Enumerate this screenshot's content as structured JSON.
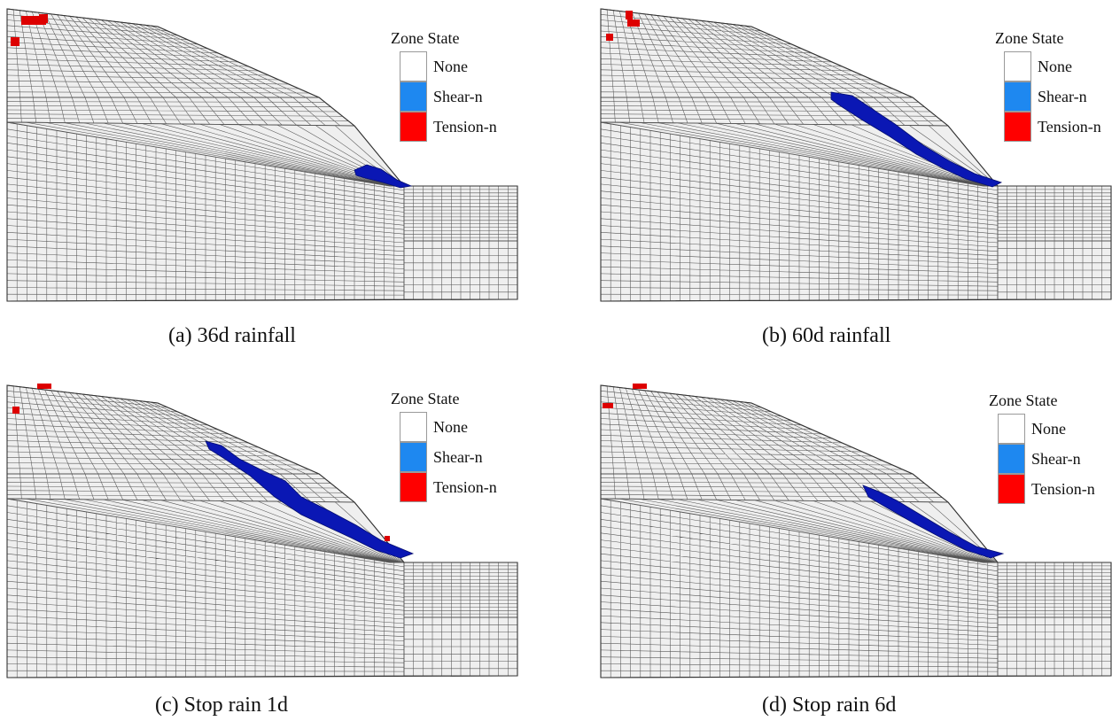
{
  "legend": {
    "title": "Zone State",
    "items": [
      {
        "label": "None",
        "color": "#ffffff"
      },
      {
        "label": "Shear-n",
        "color": "#1e88f0"
      },
      {
        "label": "Tension-n",
        "color": "#ff0000"
      }
    ]
  },
  "mesh_colors": {
    "zone_fill": "#efefef",
    "grid_line": "#555555",
    "shear_zone": "#0a17b4",
    "tension_zone": "#dd0000"
  },
  "panels": [
    {
      "caption": "(a) 36d rainfall",
      "failure_extent": "toe"
    },
    {
      "caption": "(b) 60d rainfall",
      "failure_extent": "long"
    },
    {
      "caption": "(c) Stop rain 1d",
      "failure_extent": "longest"
    },
    {
      "caption": "(d) Stop rain 6d",
      "failure_extent": "medium"
    }
  ]
}
